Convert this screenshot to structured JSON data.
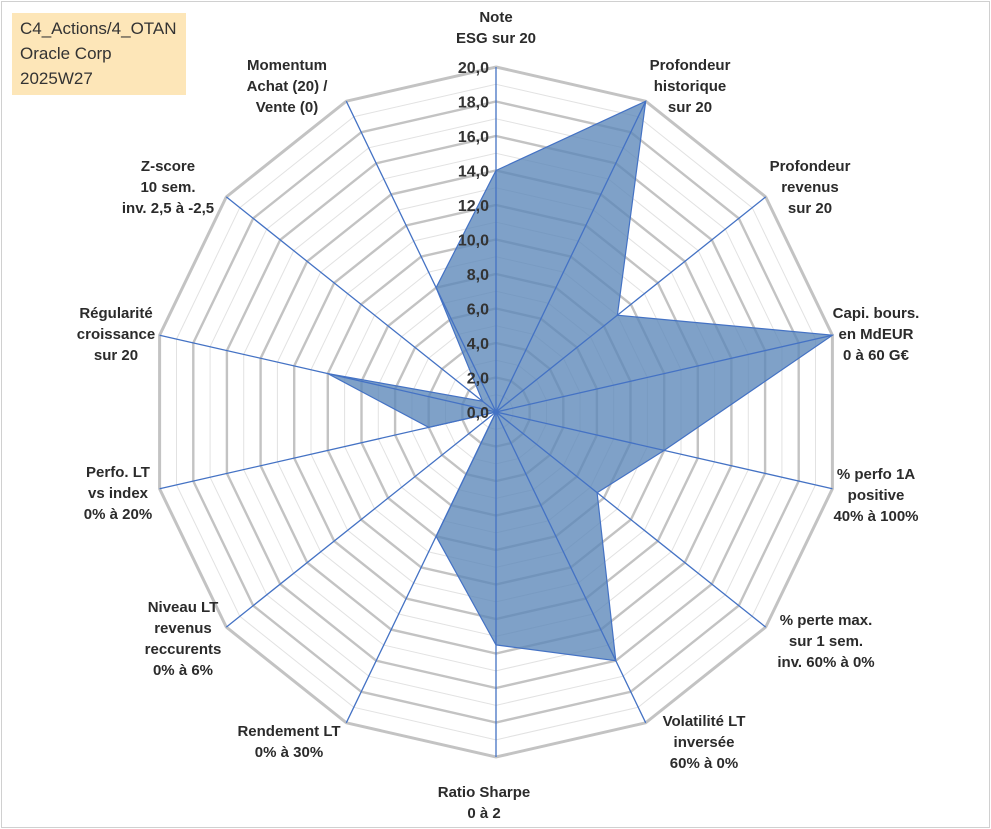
{
  "info_box": {
    "lines": [
      "C4_Actions/4_OTAN",
      "Oracle Corp",
      "2025W27"
    ],
    "background": "#fde6b8"
  },
  "chart_data": {
    "type": "radar",
    "title": "",
    "rlim": [
      0,
      20
    ],
    "tick_step": 2,
    "tick_labels": [
      "0,0",
      "2,0",
      "4,0",
      "6,0",
      "8,0",
      "10,0",
      "12,0",
      "14,0",
      "16,0",
      "18,0",
      "20,0"
    ],
    "grid": true,
    "axes": [
      {
        "label": [
          "Note",
          "ESG sur 20"
        ],
        "value": 14.0
      },
      {
        "label": [
          "Profondeur",
          "historique",
          "sur 20"
        ],
        "value": 20.0
      },
      {
        "label": [
          "Profondeur",
          "revenus",
          "sur 20"
        ],
        "value": 9.0
      },
      {
        "label": [
          "Capi. bours.",
          "en MdEUR",
          "0 à 60 G€"
        ],
        "value": 20.0
      },
      {
        "label": [
          "% perfo 1A",
          "positive",
          "40% à 100%"
        ],
        "value": 10.0
      },
      {
        "label": [
          "% perte max.",
          "sur 1 sem.",
          "inv. 60% à 0%"
        ],
        "value": 7.5
      },
      {
        "label": [
          "Volatilité LT",
          "inversée",
          "60% à 0%"
        ],
        "value": 16.0
      },
      {
        "label": [
          "Ratio Sharpe",
          "0 à 2"
        ],
        "value": 13.5
      },
      {
        "label": [
          "Rendement LT",
          "0% à 30%"
        ],
        "value": 8.0
      },
      {
        "label": [
          "Niveau LT",
          "revenus",
          "reccurents",
          "0% à 6%"
        ],
        "value": 0.0
      },
      {
        "label": [
          "Perfo. LT",
          "vs index",
          "0% à 20%"
        ],
        "value": 4.0
      },
      {
        "label": [
          "Régularité",
          "croissance",
          "sur 20"
        ],
        "value": 10.0
      },
      {
        "label": [
          "Z-score",
          "10 sem.",
          "inv. 2,5 à -2,5"
        ],
        "value": 1.0
      },
      {
        "label": [
          "Momentum",
          "Achat (20) /",
          "Vente (0)"
        ],
        "value": 8.0
      }
    ],
    "colors": {
      "fill": "#5b86b8",
      "fill_opacity": 0.78,
      "outline": "#4472c4",
      "spoke": "#4472c4",
      "major_grid": "#c3c3c3",
      "minor_grid": "#e2e2e2"
    }
  }
}
